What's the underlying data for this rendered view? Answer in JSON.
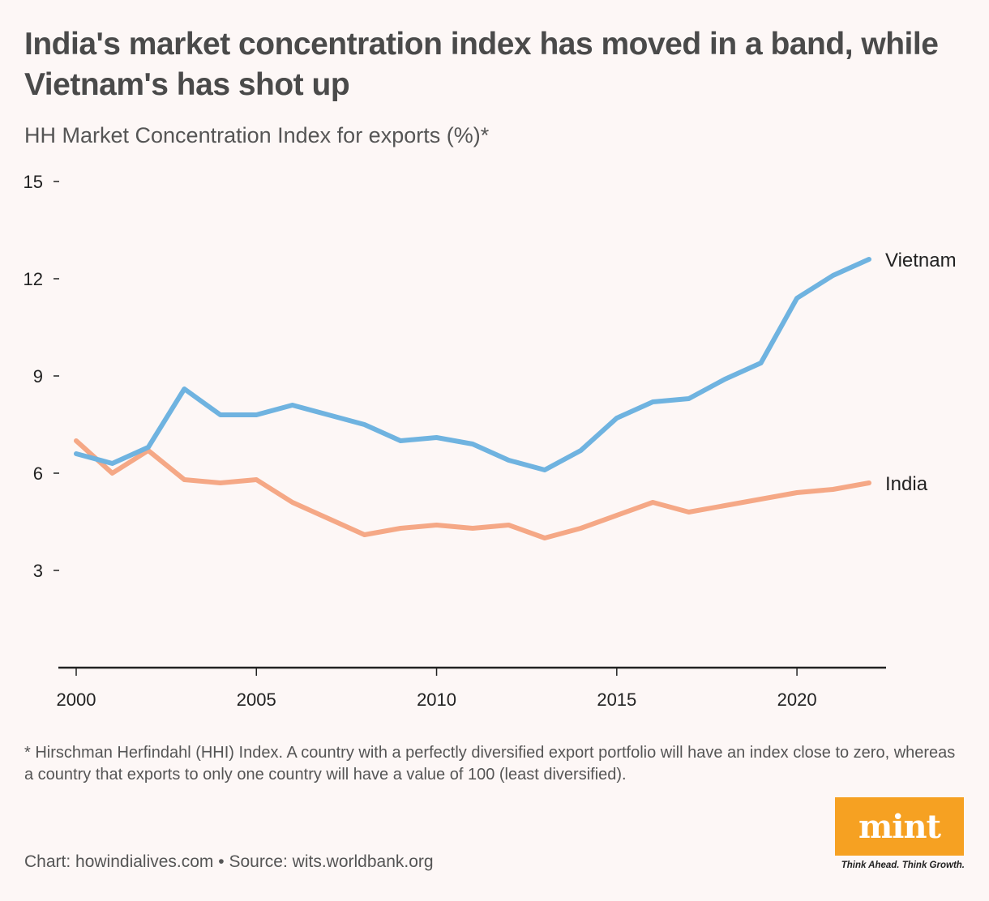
{
  "title": "India's market concentration index has moved in a band, while Vietnam's has shot up",
  "subtitle": "HH Market Concentration Index for exports (%)*",
  "footnote": "* Hirschman Herfindahl (HHI) Index. A country with a perfectly diversified export portfolio will have an index close to zero, whereas a country that exports to only one country will have a value of 100 (least diversified).",
  "source": "Chart: howindialives.com • Source: wits.worldbank.org",
  "logo": {
    "text": "mint",
    "tagline": "Think Ahead. Think Growth."
  },
  "colors": {
    "vietnam": "#6fb3e0",
    "india": "#f5a886",
    "axis": "#222222",
    "logo_bg": "#f6a122"
  },
  "chart_data": {
    "type": "line",
    "title": "India's market concentration index has moved in a band, while Vietnam's has shot up",
    "ylabel": "HH Market Concentration Index for exports (%)",
    "xlabel": "",
    "xlim": [
      2000,
      2022
    ],
    "ylim": [
      0,
      15
    ],
    "yticks": [
      3,
      6,
      9,
      12,
      15
    ],
    "xticks": [
      2000,
      2005,
      2010,
      2015,
      2020
    ],
    "grid": false,
    "x": [
      2000,
      2001,
      2002,
      2003,
      2004,
      2005,
      2006,
      2007,
      2008,
      2009,
      2010,
      2011,
      2012,
      2013,
      2014,
      2015,
      2016,
      2017,
      2018,
      2019,
      2020,
      2021,
      2022
    ],
    "series": [
      {
        "name": "Vietnam",
        "values": [
          6.6,
          6.3,
          6.8,
          8.6,
          7.8,
          7.8,
          8.1,
          7.8,
          7.5,
          7.0,
          7.1,
          6.9,
          6.4,
          6.1,
          6.7,
          7.7,
          8.2,
          8.3,
          8.9,
          9.4,
          11.4,
          12.1,
          12.6
        ]
      },
      {
        "name": "India",
        "values": [
          7.0,
          6.0,
          6.7,
          5.8,
          5.7,
          5.8,
          5.1,
          4.6,
          4.1,
          4.3,
          4.4,
          4.3,
          4.4,
          4.0,
          4.3,
          4.7,
          5.1,
          4.8,
          5.0,
          5.2,
          5.4,
          5.5,
          5.7
        ]
      }
    ]
  }
}
